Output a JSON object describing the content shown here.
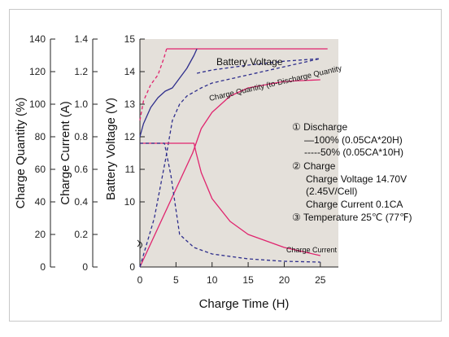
{
  "chart_data": {
    "type": "line",
    "xlabel": "Charge Time (H)",
    "x_ticks": [
      0,
      5,
      10,
      15,
      20,
      25
    ],
    "xlim": [
      0,
      27.5
    ],
    "axes": {
      "quantity": {
        "label": "Charge Quantity (%)",
        "ticks": [
          0,
          20,
          40,
          60,
          80,
          100,
          120,
          140
        ],
        "lim": [
          0,
          140
        ]
      },
      "current": {
        "label": "Charge Current (A)",
        "ticks": [
          0,
          0.2,
          0.4,
          0.6,
          0.8,
          1.0,
          1.2,
          1.4
        ],
        "lim": [
          0,
          1.4
        ]
      },
      "voltage": {
        "label": "Battery Voltage (V)",
        "ticks": [
          0,
          10,
          11,
          12,
          13,
          14,
          15
        ],
        "lim": [
          0,
          15
        ],
        "axis_break": true
      }
    },
    "series": [
      {
        "name": "Battery Voltage",
        "axis": "voltage",
        "style": "solid",
        "color": "#e0246e",
        "x": [
          3.7,
          4.5,
          10,
          15,
          20,
          25,
          26
        ],
        "y": [
          14.7,
          14.7,
          14.7,
          14.7,
          14.7,
          14.7,
          14.7
        ]
      },
      {
        "axis": "voltage",
        "style": "dashed",
        "color": "#e0246e",
        "x": [
          0,
          0.5,
          1.5,
          2.5,
          3.3,
          3.7
        ],
        "y": [
          12.5,
          13.1,
          13.6,
          13.9,
          14.4,
          14.7
        ]
      },
      {
        "axis": "voltage",
        "style": "solid",
        "color": "#2e2e8c",
        "x": [
          0,
          0.5,
          1.5,
          2.5,
          3.5,
          4.5,
          5.5,
          6.5,
          7.5,
          7.9
        ],
        "y": [
          12.0,
          12.4,
          12.9,
          13.2,
          13.4,
          13.5,
          13.8,
          14.1,
          14.5,
          14.7
        ]
      },
      {
        "axis": "voltage",
        "style": "dashed",
        "color": "#2e2e8c",
        "x": [
          7.9,
          10,
          15,
          20,
          25
        ],
        "y": [
          13.95,
          14.05,
          14.2,
          14.32,
          14.4
        ]
      },
      {
        "name": "Charge Quantity (to-Discharge Quantity",
        "axis": "quantity",
        "style": "solid",
        "color": "#e0246e",
        "x": [
          0,
          7.3,
          8.5,
          10,
          12.5,
          15,
          20,
          25
        ],
        "y": [
          0,
          70,
          85,
          95,
          105,
          110,
          114,
          115
        ]
      },
      {
        "axis": "quantity",
        "style": "dashed",
        "color": "#2e2e8c",
        "x": [
          0,
          2,
          3.6,
          4.5,
          5.5,
          6.5,
          8.5,
          10,
          15,
          20,
          25
        ],
        "y": [
          0,
          30,
          67,
          90,
          100,
          105,
          110,
          113,
          118,
          123,
          128
        ]
      },
      {
        "name": "Charge Current",
        "axis": "current",
        "style": "solid",
        "color": "#e0246e",
        "x": [
          0,
          7.5,
          7.8,
          8.5,
          10,
          12.5,
          15,
          20,
          25
        ],
        "y": [
          0.76,
          0.76,
          0.7,
          0.58,
          0.42,
          0.28,
          0.2,
          0.12,
          0.07
        ]
      },
      {
        "axis": "current",
        "style": "dashed",
        "color": "#2e2e8c",
        "x": [
          0,
          3.4,
          4.3,
          5.5,
          7.5,
          10,
          15,
          20,
          25
        ],
        "y": [
          0.76,
          0.76,
          0.56,
          0.2,
          0.12,
          0.08,
          0.05,
          0.035,
          0.03
        ]
      }
    ],
    "curve_labels": {
      "voltage": "Battery Voltage",
      "quantity": "Charge Quantity (to-Discharge Quantity",
      "current": "Charge Current"
    },
    "annotations": {
      "discharge_title": "① Discharge",
      "discharge_100": "—100% (0.05CA*20H)",
      "discharge_50": "-----50% (0.05CA*10H)",
      "charge_title": "② Charge",
      "charge_voltage": "Charge Voltage 14.70V",
      "charge_per_cell": "(2.45V/Cell)",
      "charge_current": "Charge Current 0.1CA",
      "temperature": "③ Temperature 25℃ (77℉)"
    },
    "colors": {
      "plot_background": "#e4e0da",
      "pink": "#e0246e",
      "navy": "#2e2e8c"
    }
  }
}
